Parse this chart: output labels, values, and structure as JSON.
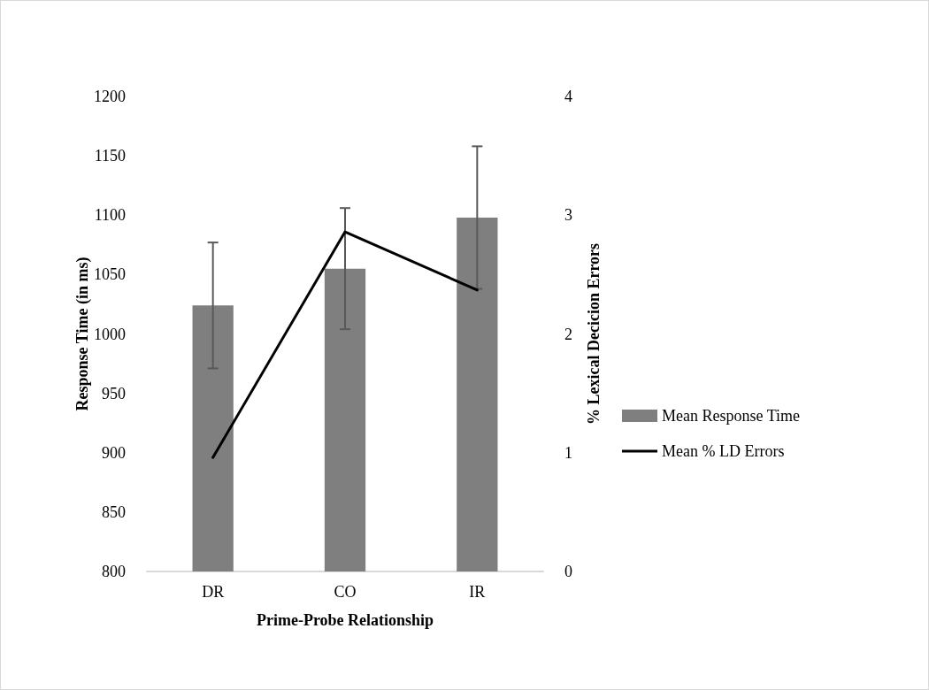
{
  "chart_data": {
    "type": "bar",
    "xlabel": "Prime-Probe Relationship",
    "ylabel": "Response Time (in ms)",
    "y2label": "% Lexical Decicion Errors",
    "categories": [
      "DR",
      "CO",
      "IR"
    ],
    "series": [
      {
        "name": "Mean Response Time",
        "color": "#7f7f7f",
        "values": [
          1024,
          1055,
          1098
        ],
        "errors": [
          53,
          51,
          60
        ]
      },
      {
        "name": "Mean % LD Errors",
        "type": "line",
        "color": "#000000",
        "axis": "y2",
        "values": [
          0.96,
          2.86,
          2.37
        ],
        "marker": "none"
      }
    ],
    "ylim": [
      800,
      1200
    ],
    "yticks": [
      800,
      850,
      900,
      950,
      1000,
      1050,
      1100,
      1150,
      1200
    ],
    "y2lim": [
      0,
      4
    ],
    "y2ticks": [
      0,
      1,
      2,
      3,
      4
    ],
    "grid": false,
    "legend": "right"
  }
}
